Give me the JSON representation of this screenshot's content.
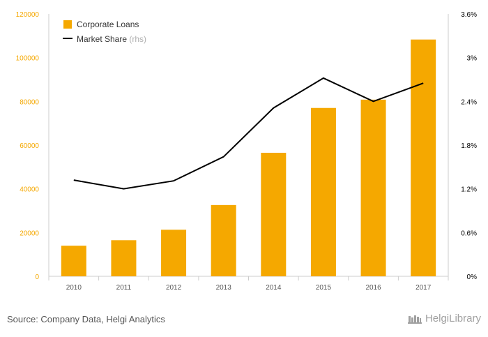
{
  "chart_data": {
    "type": "bar",
    "categories": [
      "2010",
      "2011",
      "2012",
      "2013",
      "2014",
      "2015",
      "2016",
      "2017"
    ],
    "series": [
      {
        "name": "Corporate Loans",
        "type": "bar",
        "axis": "left",
        "values": [
          14000,
          16500,
          21300,
          32600,
          56500,
          77000,
          80800,
          108300
        ]
      },
      {
        "name": "Market Share",
        "type": "line",
        "axis": "right",
        "values": [
          1.32,
          1.2,
          1.31,
          1.64,
          2.31,
          2.72,
          2.4,
          2.65
        ]
      }
    ],
    "left_axis": {
      "ylim": [
        0,
        120000
      ],
      "ticks": [
        "0",
        "20000",
        "40000",
        "60000",
        "80000",
        "100000",
        "120000"
      ],
      "tick_values": [
        0,
        20000,
        40000,
        60000,
        80000,
        100000,
        120000
      ]
    },
    "right_axis": {
      "ylim": [
        0,
        3.6
      ],
      "ticks": [
        "0%",
        "0.6%",
        "1.2%",
        "1.8%",
        "2.4%",
        "3%",
        "3.6%"
      ],
      "tick_values": [
        0,
        0.6,
        1.2,
        1.8,
        2.4,
        3.0,
        3.6
      ]
    },
    "legend": {
      "position": "top-left",
      "suffix_rhs": "(rhs)"
    },
    "grid": false,
    "colors": {
      "bar": "#f5a800",
      "line": "#000000",
      "left_ticks": "#f5a800"
    }
  },
  "footer": {
    "source": "Source: Company Data, Helgi Analytics"
  },
  "logo": {
    "text": "HelgiLibrary",
    "icon": "library-icon"
  }
}
